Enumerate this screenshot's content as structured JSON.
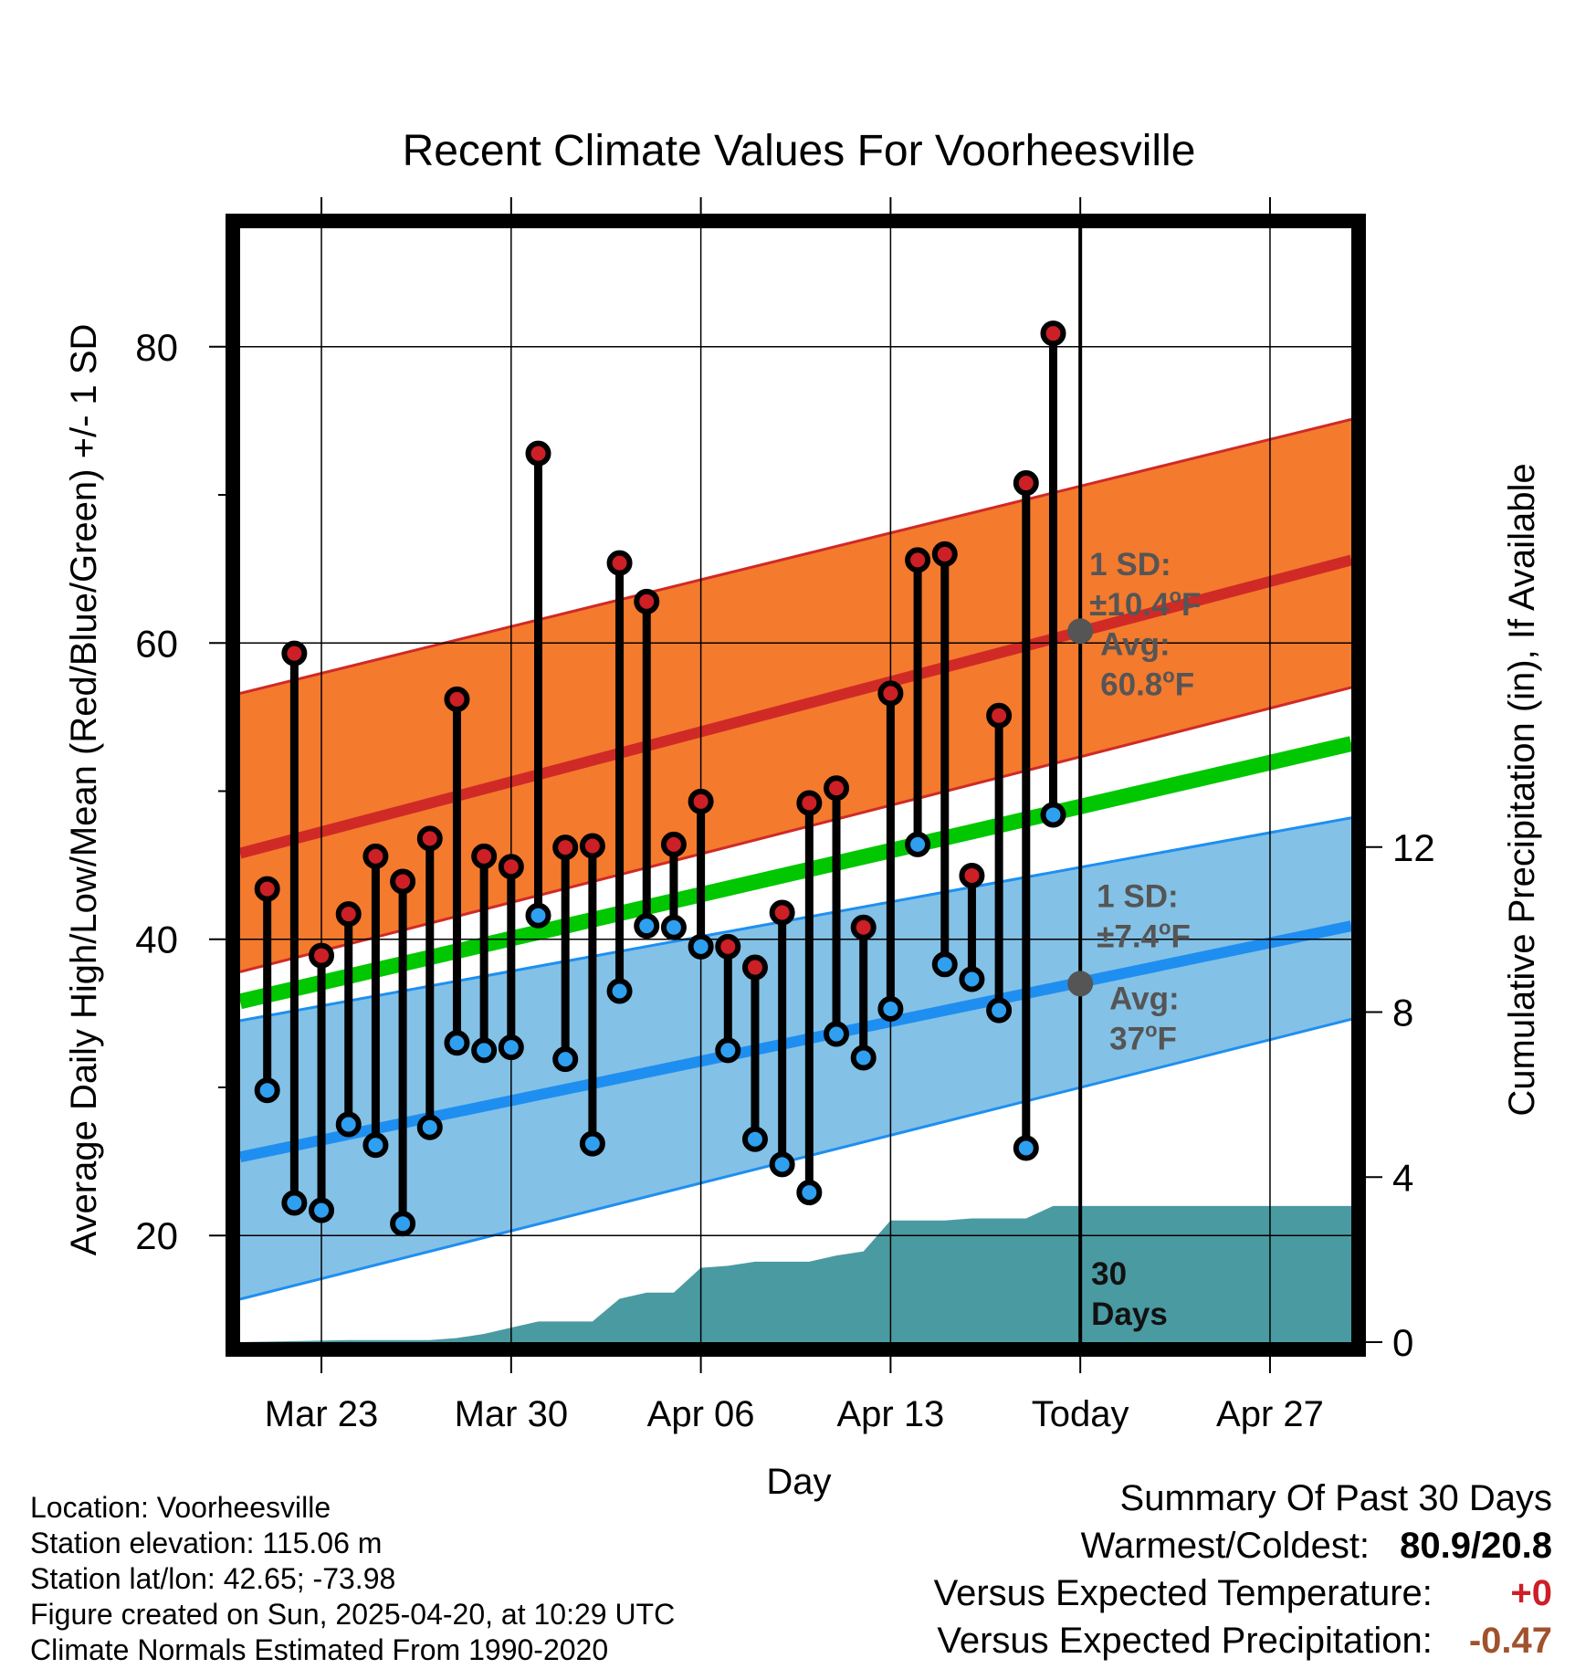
{
  "chart_data": {
    "type": "line",
    "title": "Recent Climate Values For Voorheesville",
    "xlabel": "Day",
    "ylabel": "Average Daily High/Low/Mean (Red/Blue/Green) +/- 1 SD",
    "y2label": "Cumulative Precipitation (in), If Available",
    "ylim": [
      12.8,
      88
    ],
    "y2lim": [
      0,
      27
    ],
    "yticks": [
      20,
      40,
      60,
      80
    ],
    "y2ticks": [
      0,
      4,
      8,
      12
    ],
    "x_tick_labels": [
      "Mar 23",
      "Mar 30",
      "Apr 06",
      "Apr 13",
      "Today",
      "Apr 27"
    ],
    "x_tick_days": [
      -28,
      -21,
      -14,
      -7,
      0,
      7
    ],
    "x_range_days": [
      -31,
      10
    ],
    "grid": true,
    "today_offset": 0,
    "daily": {
      "day_offset": [
        -30,
        -29,
        -28,
        -27,
        -26,
        -25,
        -24,
        -23,
        -22,
        -21,
        -20,
        -19,
        -18,
        -17,
        -16,
        -15,
        -14,
        -13,
        -12,
        -11,
        -10,
        -9,
        -8,
        -7,
        -6,
        -5,
        -4,
        -3,
        -2,
        -1
      ],
      "high": [
        43.4,
        59.3,
        38.9,
        41.7,
        45.6,
        43.9,
        46.8,
        56.2,
        45.6,
        44.9,
        72.8,
        46.2,
        46.3,
        65.4,
        62.8,
        46.4,
        49.3,
        39.5,
        38.1,
        41.8,
        49.2,
        50.2,
        40.8,
        56.6,
        65.6,
        66.0,
        44.3,
        55.1,
        70.8,
        80.9
      ],
      "low": [
        29.8,
        22.2,
        21.7,
        27.5,
        26.1,
        20.8,
        27.3,
        33.0,
        32.5,
        32.7,
        41.6,
        31.9,
        26.2,
        36.5,
        40.9,
        40.8,
        39.5,
        32.5,
        26.5,
        24.8,
        22.9,
        33.6,
        32.0,
        35.3,
        46.4,
        38.3,
        37.3,
        35.2,
        25.9,
        48.4
      ]
    },
    "normals": {
      "day_offset": [
        -31,
        10
      ],
      "high_mean": [
        45.8,
        65.6
      ],
      "high_sd_upper": [
        56.6,
        75.1
      ],
      "high_sd_lower": [
        37.8,
        57.0
      ],
      "mean": [
        35.8,
        53.2
      ],
      "low_mean": [
        25.3,
        40.9
      ],
      "low_sd_upper": [
        34.5,
        48.2
      ],
      "low_sd_lower": [
        15.7,
        34.6
      ]
    },
    "precip_cumulative": {
      "day_offset": [
        -31,
        -27,
        -25,
        -24,
        -23,
        -22,
        -21,
        -20,
        -19,
        -18,
        -17,
        -16,
        -15,
        -14,
        -13,
        -12,
        -11,
        -10,
        -9,
        -8,
        -7,
        -6,
        -5,
        -4,
        -3,
        -2,
        -1,
        0,
        10
      ],
      "value": [
        0,
        0.05,
        0.05,
        0.05,
        0.1,
        0.2,
        0.35,
        0.5,
        0.5,
        0.5,
        1.05,
        1.2,
        1.2,
        1.8,
        1.85,
        1.95,
        1.95,
        1.95,
        2.1,
        2.2,
        2.95,
        2.95,
        2.95,
        3.0,
        3.0,
        3.0,
        3.3,
        3.3,
        3.3
      ]
    },
    "annotations": {
      "high_sd": [
        "1 SD:",
        "±10.4",
        "o",
        "F"
      ],
      "high_avg": [
        "Avg:",
        "60.8",
        "o",
        "F"
      ],
      "low_sd": [
        "1 SD:",
        "±7.4",
        "o",
        "F"
      ],
      "low_avg": [
        "Avg:",
        "37",
        "o",
        "F"
      ],
      "high_avg_value": 60.8,
      "low_avg_value": 37.0,
      "window": [
        "30",
        "Days"
      ]
    },
    "colors": {
      "high_band": "#f47a2e",
      "high_line": "#d02a26",
      "low_band": "#84c1e6",
      "low_line": "#1e8ff0",
      "mean_line": "#00c700",
      "precip": "#4a9aa2",
      "marker_high": "#cc1f26",
      "marker_low": "#2f9ff0",
      "avg_marker": "#555555",
      "annotation_text": "#555555"
    }
  },
  "info": {
    "location": "Location: Voorheesville",
    "elevation": "Station elevation: 115.06 m",
    "latlon": "Station lat/lon: 42.65; -73.98",
    "created": "Figure created on Sun, 2025-04-20, at 10:29 UTC",
    "normals": "Climate Normals Estimated From 1990-2020"
  },
  "summary": {
    "title": "Summary Of Past 30 Days",
    "warmest_label": "Warmest/Coldest:",
    "warmest_value": "80.9/20.8",
    "temp_label": "Versus Expected Temperature:",
    "temp_value": "+0",
    "temp_color": "#cc1f26",
    "precip_label": "Versus Expected Precipitation:",
    "precip_value": "-0.47",
    "precip_color": "#a0522d"
  }
}
